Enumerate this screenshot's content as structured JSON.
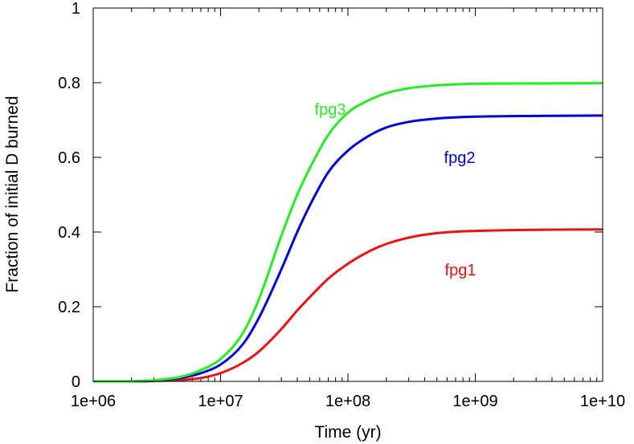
{
  "chart_data": {
    "type": "line",
    "xlabel": "Time (yr)",
    "ylabel": "Fraction of initial D burned",
    "x_scale": "log",
    "xlim": [
      1000000,
      10000000000
    ],
    "ylim": [
      0,
      1
    ],
    "x_tick_values": [
      1000000,
      10000000,
      100000000,
      1000000000,
      10000000000
    ],
    "x_tick_labels": [
      "1e+06",
      "1e+07",
      "1e+08",
      "1e+09",
      "1e+10"
    ],
    "y_tick_values": [
      0,
      0.2,
      0.4,
      0.6,
      0.8,
      1
    ],
    "y_tick_labels": [
      "0",
      "0.2",
      "0.4",
      "0.6",
      "0.8",
      "1"
    ],
    "grid": false,
    "x": [
      1000000,
      2000000,
      3000000,
      5000000,
      7000000,
      10000000,
      15000000,
      20000000,
      30000000,
      40000000,
      50000000,
      70000000,
      100000000,
      150000000,
      200000000,
      300000000,
      500000000,
      1000000000,
      3000000000,
      10000000000
    ],
    "series": [
      {
        "name": "fpg1",
        "color": "#ee1111",
        "values": [
          0.0,
          0.0,
          0.001,
          0.004,
          0.009,
          0.022,
          0.05,
          0.08,
          0.14,
          0.19,
          0.225,
          0.275,
          0.315,
          0.35,
          0.368,
          0.385,
          0.397,
          0.403,
          0.406,
          0.407
        ]
      },
      {
        "name": "fpg2",
        "color": "#0000dd",
        "values": [
          0.0,
          0.0,
          0.002,
          0.01,
          0.022,
          0.045,
          0.1,
          0.17,
          0.3,
          0.4,
          0.47,
          0.56,
          0.618,
          0.66,
          0.68,
          0.695,
          0.704,
          0.709,
          0.711,
          0.712
        ]
      },
      {
        "name": "fpg3",
        "color": "#22ee22",
        "values": [
          0.0,
          0.0,
          0.003,
          0.013,
          0.03,
          0.06,
          0.13,
          0.22,
          0.39,
          0.5,
          0.57,
          0.66,
          0.72,
          0.755,
          0.772,
          0.785,
          0.793,
          0.797,
          0.798,
          0.799
        ]
      }
    ],
    "annotations": [
      {
        "text": "fpg3",
        "series": "fpg3"
      },
      {
        "text": "fpg2",
        "series": "fpg2"
      },
      {
        "text": "fpg1",
        "series": "fpg1"
      }
    ]
  }
}
